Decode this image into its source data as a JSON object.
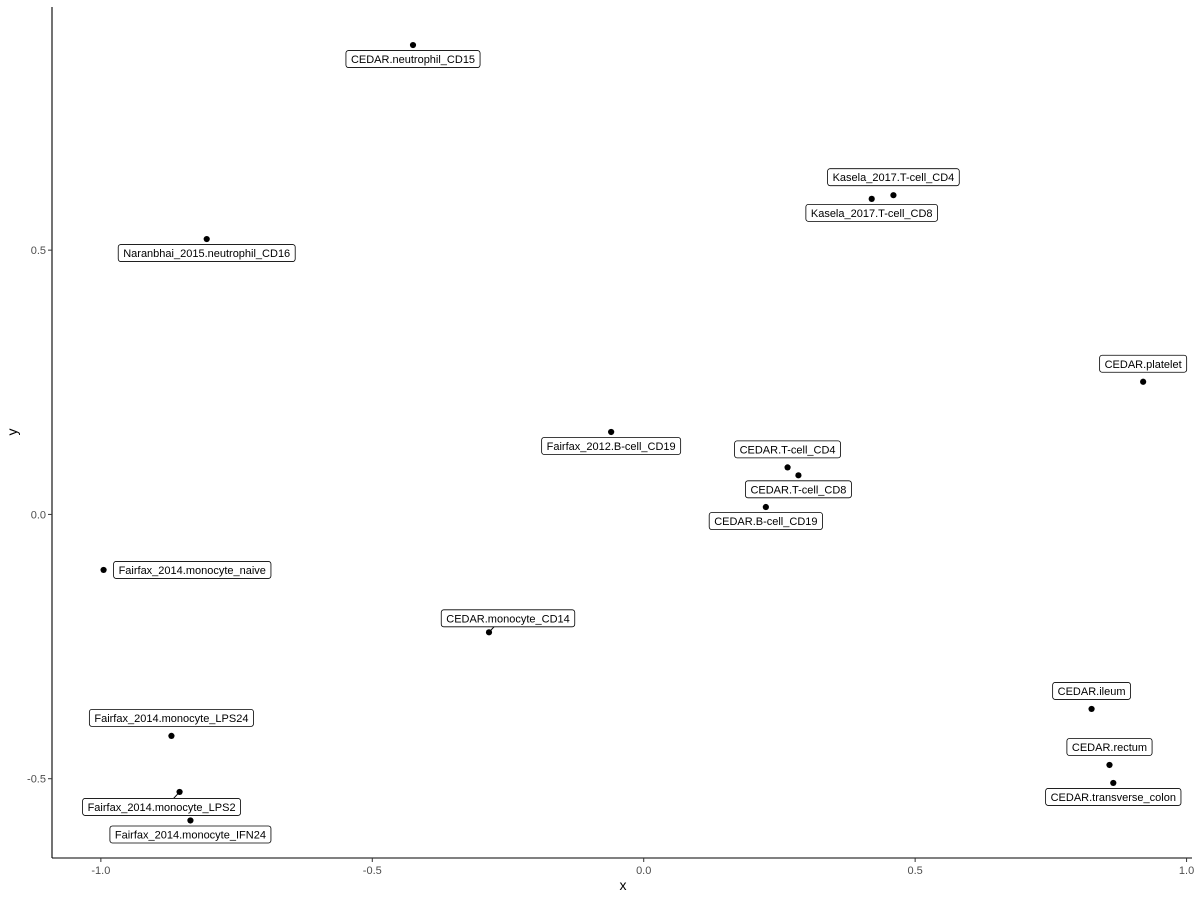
{
  "chart_data": {
    "type": "scatter",
    "title": "",
    "xlabel": "x",
    "ylabel": "y",
    "xlim": [
      -1.09,
      1.01
    ],
    "ylim": [
      -0.65,
      0.96
    ],
    "x_ticks": [
      {
        "value": -1.0,
        "label": "-1.0"
      },
      {
        "value": -0.5,
        "label": "-0.5"
      },
      {
        "value": 0.0,
        "label": "0.0"
      },
      {
        "value": 0.5,
        "label": "0.5"
      },
      {
        "value": 1.0,
        "label": "1.0"
      }
    ],
    "y_ticks": [
      {
        "value": -0.5,
        "label": "-0.5"
      },
      {
        "value": 0.0,
        "label": "0.0"
      },
      {
        "value": 0.5,
        "label": "0.5"
      }
    ],
    "grid": false,
    "point_color": "#000000",
    "points": [
      {
        "label": "CEDAR.neutrophil_CD15",
        "x": -0.425,
        "y": 0.888,
        "label_pos": "below"
      },
      {
        "label": "Kasela_2017.T-cell_CD4",
        "x": 0.46,
        "y": 0.604,
        "label_pos": "above"
      },
      {
        "label": "Kasela_2017.T-cell_CD8",
        "x": 0.42,
        "y": 0.597,
        "label_pos": "below"
      },
      {
        "label": "Naranbhai_2015.neutrophil_CD16",
        "x": -0.805,
        "y": 0.521,
        "label_pos": "below"
      },
      {
        "label": "CEDAR.platelet",
        "x": 0.92,
        "y": 0.251,
        "label_pos": "above"
      },
      {
        "label": "Fairfax_2012.B-cell_CD19",
        "x": -0.06,
        "y": 0.156,
        "label_pos": "below"
      },
      {
        "label": "CEDAR.T-cell_CD4",
        "x": 0.265,
        "y": 0.089,
        "label_pos": "above"
      },
      {
        "label": "CEDAR.T-cell_CD8",
        "x": 0.285,
        "y": 0.074,
        "label_pos": "below"
      },
      {
        "label": "CEDAR.B-cell_CD19",
        "x": 0.225,
        "y": 0.014,
        "label_pos": "below"
      },
      {
        "label": "Fairfax_2014.monocyte_naive",
        "x": -0.995,
        "y": -0.105,
        "label_pos": "right"
      },
      {
        "label": "CEDAR.monocyte_CD14",
        "x": -0.285,
        "y": -0.223,
        "label_pos": "above-right"
      },
      {
        "label": "CEDAR.ileum",
        "x": 0.825,
        "y": -0.368,
        "label_pos": "above"
      },
      {
        "label": "Fairfax_2014.monocyte_LPS24",
        "x": -0.87,
        "y": -0.419,
        "label_pos": "above"
      },
      {
        "label": "CEDAR.rectum",
        "x": 0.858,
        "y": -0.474,
        "label_pos": "above"
      },
      {
        "label": "CEDAR.transverse_colon",
        "x": 0.865,
        "y": -0.508,
        "label_pos": "below"
      },
      {
        "label": "Fairfax_2014.monocyte_LPS2",
        "x": -0.855,
        "y": -0.525,
        "label_pos": "below-left"
      },
      {
        "label": "Fairfax_2014.monocyte_IFN24",
        "x": -0.835,
        "y": -0.579,
        "label_pos": "below"
      }
    ]
  }
}
